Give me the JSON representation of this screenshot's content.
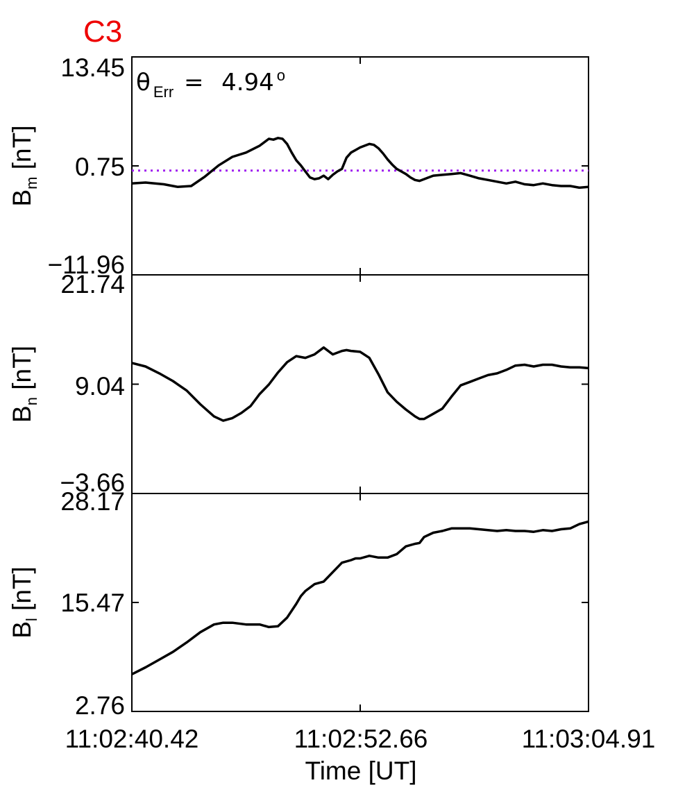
{
  "figure": {
    "title": "C3",
    "xlabel": "Time [UT]",
    "x_tick_labels": [
      "11:02:40.42",
      "11:02:52.66",
      "11:03:04.91"
    ]
  },
  "colors": {
    "title": "#ee0000",
    "line": "#000000",
    "reference_line": "#a020f0"
  },
  "annotation": {
    "theta_symbol": "θ",
    "theta_subscript": "Err",
    "equals": " =  ",
    "value": "4.94",
    "superscript": "o"
  },
  "chart_data": [
    {
      "type": "line",
      "name": "Bm",
      "ylabel_main": "B",
      "ylabel_sub": "m",
      "ylabel_unit": " [nT]",
      "ylim": [
        -11.96,
        13.45
      ],
      "ytick_labels": [
        "13.45",
        "0.75",
        "-11.96"
      ],
      "reference_line": 0.2,
      "x": [
        0,
        0.03,
        0.07,
        0.1,
        0.13,
        0.16,
        0.19,
        0.22,
        0.25,
        0.28,
        0.3,
        0.31,
        0.32,
        0.33,
        0.34,
        0.35,
        0.36,
        0.37,
        0.38,
        0.39,
        0.4,
        0.41,
        0.42,
        0.43,
        0.44,
        0.45,
        0.46,
        0.47,
        0.48,
        0.49,
        0.5,
        0.51,
        0.52,
        0.53,
        0.54,
        0.55,
        0.56,
        0.57,
        0.58,
        0.59,
        0.6,
        0.61,
        0.62,
        0.63,
        0.64,
        0.66,
        0.68,
        0.7,
        0.72,
        0.74,
        0.76,
        0.78,
        0.8,
        0.82,
        0.84,
        0.86,
        0.88,
        0.9,
        0.92,
        0.94,
        0.96,
        0.98,
        1.0
      ],
      "y": [
        -1.3,
        -1.2,
        -1.4,
        -1.7,
        -1.6,
        -0.5,
        0.8,
        1.8,
        2.3,
        3.1,
        3.9,
        3.8,
        4.0,
        3.9,
        3.3,
        2.3,
        1.4,
        0.8,
        0.1,
        -0.6,
        -0.8,
        -0.7,
        -0.4,
        -0.8,
        -0.3,
        0.1,
        0.4,
        1.7,
        2.3,
        2.6,
        2.9,
        3.1,
        3.3,
        3.2,
        2.8,
        2.2,
        1.5,
        0.9,
        0.4,
        0.1,
        -0.2,
        -0.6,
        -0.9,
        -1.0,
        -0.8,
        -0.4,
        -0.3,
        -0.2,
        -0.1,
        -0.4,
        -0.7,
        -0.9,
        -1.1,
        -1.3,
        -1.1,
        -1.4,
        -1.5,
        -1.3,
        -1.5,
        -1.6,
        -1.6,
        -1.8,
        -1.7
      ]
    },
    {
      "type": "line",
      "name": "Bn",
      "ylabel_main": "B",
      "ylabel_sub": "n",
      "ylabel_unit": " [nT]",
      "ylim": [
        -3.66,
        21.74
      ],
      "ytick_labels": [
        "21.74",
        "9.04",
        "-3.66"
      ],
      "x": [
        0,
        0.03,
        0.06,
        0.09,
        0.12,
        0.15,
        0.18,
        0.2,
        0.22,
        0.24,
        0.26,
        0.28,
        0.3,
        0.32,
        0.34,
        0.36,
        0.38,
        0.4,
        0.42,
        0.44,
        0.46,
        0.47,
        0.48,
        0.5,
        0.52,
        0.54,
        0.56,
        0.58,
        0.6,
        0.62,
        0.63,
        0.64,
        0.66,
        0.68,
        0.7,
        0.72,
        0.74,
        0.76,
        0.78,
        0.8,
        0.82,
        0.84,
        0.86,
        0.88,
        0.9,
        0.92,
        0.94,
        0.96,
        0.98,
        1.0
      ],
      "y": [
        11.5,
        11.1,
        10.3,
        9.4,
        8.3,
        6.7,
        5.3,
        4.8,
        5.1,
        5.7,
        6.5,
        7.9,
        9.0,
        10.4,
        11.6,
        12.3,
        12.1,
        12.5,
        13.3,
        12.5,
        12.9,
        13.0,
        12.9,
        12.8,
        12.1,
        10.2,
        8.1,
        7.0,
        6.1,
        5.3,
        5.0,
        5.0,
        5.6,
        6.2,
        7.6,
        8.9,
        9.3,
        9.7,
        10.1,
        10.3,
        10.7,
        11.2,
        11.3,
        11.1,
        11.3,
        11.3,
        11.1,
        11.0,
        11.0,
        10.9
      ]
    },
    {
      "type": "line",
      "name": "Bl",
      "ylabel_main": "B",
      "ylabel_sub": "l",
      "ylabel_unit": " [nT]",
      "ylim": [
        2.76,
        28.17
      ],
      "ytick_labels": [
        "28.17",
        "15.47",
        "2.76"
      ],
      "x": [
        0,
        0.03,
        0.06,
        0.09,
        0.12,
        0.15,
        0.18,
        0.2,
        0.22,
        0.25,
        0.28,
        0.3,
        0.32,
        0.34,
        0.36,
        0.37,
        0.38,
        0.4,
        0.42,
        0.44,
        0.46,
        0.48,
        0.49,
        0.5,
        0.52,
        0.54,
        0.56,
        0.58,
        0.6,
        0.62,
        0.63,
        0.64,
        0.66,
        0.68,
        0.7,
        0.72,
        0.74,
        0.76,
        0.78,
        0.8,
        0.82,
        0.84,
        0.86,
        0.88,
        0.9,
        0.92,
        0.94,
        0.96,
        0.98,
        1.0
      ],
      "y": [
        7.1,
        7.9,
        8.8,
        9.7,
        10.8,
        12.0,
        12.9,
        13.1,
        13.1,
        12.9,
        12.9,
        12.6,
        12.7,
        13.7,
        15.3,
        16.2,
        16.8,
        17.6,
        17.9,
        19.0,
        20.1,
        20.4,
        20.6,
        20.6,
        20.9,
        20.7,
        20.7,
        21.1,
        22.0,
        22.3,
        22.4,
        23.1,
        23.6,
        23.8,
        24.1,
        24.1,
        24.1,
        24.0,
        23.9,
        23.8,
        23.9,
        23.8,
        23.8,
        23.7,
        23.9,
        23.8,
        24.0,
        24.1,
        24.6,
        24.9
      ]
    }
  ]
}
